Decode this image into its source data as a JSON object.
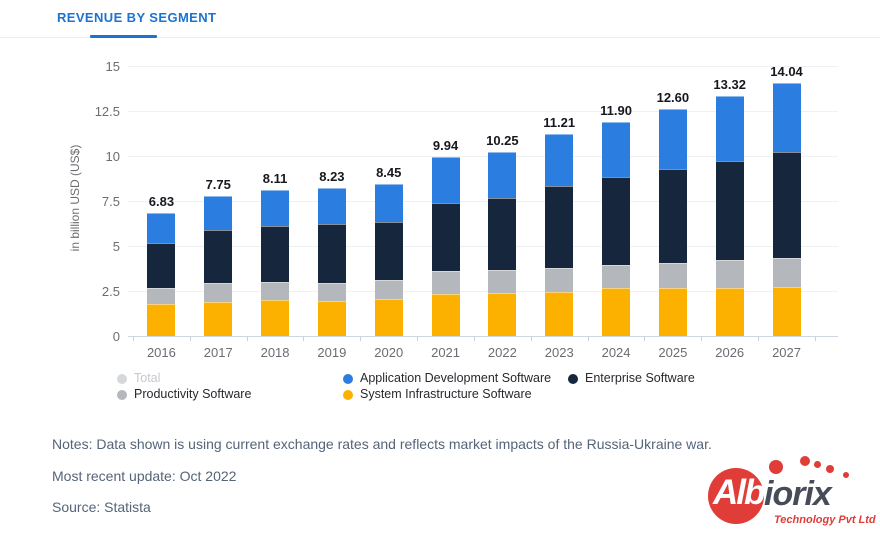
{
  "header": {
    "tab_label": "REVENUE BY SEGMENT"
  },
  "chart_data": {
    "type": "bar",
    "stacked": true,
    "title": "Revenue by segment",
    "xlabel": "",
    "ylabel": "in billion USD (US$)",
    "ylim": [
      0,
      15
    ],
    "yticks": [
      0,
      2.5,
      5,
      7.5,
      10,
      12.5,
      15
    ],
    "grid": true,
    "legend_position": "bottom",
    "categories": [
      "2016",
      "2017",
      "2018",
      "2019",
      "2020",
      "2021",
      "2022",
      "2023",
      "2024",
      "2025",
      "2026",
      "2027"
    ],
    "series": [
      {
        "name": "System Infrastructure Software",
        "color": "#fcb000",
        "values": [
          1.76,
          1.91,
          1.98,
          1.94,
          2.06,
          2.33,
          2.41,
          2.46,
          2.65,
          2.68,
          2.68,
          2.74
        ]
      },
      {
        "name": "Productivity Software",
        "color": "#b4b7bb",
        "values": [
          0.9,
          1.02,
          1.03,
          1.0,
          1.05,
          1.28,
          1.26,
          1.3,
          1.29,
          1.4,
          1.54,
          1.58
        ]
      },
      {
        "name": "Enterprise Software",
        "color": "#16263c",
        "values": [
          2.52,
          2.96,
          3.1,
          3.28,
          3.21,
          3.81,
          3.99,
          4.59,
          4.88,
          5.2,
          5.52,
          5.93
        ]
      },
      {
        "name": "Application Development Software",
        "color": "#2b7de0",
        "values": [
          1.65,
          1.86,
          2.0,
          2.01,
          2.13,
          2.52,
          2.59,
          2.86,
          3.08,
          3.32,
          3.58,
          3.79
        ]
      }
    ],
    "total_labels": [
      "6.83",
      "7.75",
      "8.11",
      "8.23",
      "8.45",
      "9.94",
      "10.25",
      "11.21",
      "11.90",
      "12.60",
      "13.32",
      "14.04"
    ],
    "legend": [
      {
        "label": "Total",
        "color": "#d5d8db",
        "disabled": true
      },
      {
        "label": "Application Development Software",
        "color": "#2b7de0",
        "disabled": false
      },
      {
        "label": "Enterprise Software",
        "color": "#16263c",
        "disabled": false
      },
      {
        "label": "Productivity Software",
        "color": "#b4b7bb",
        "disabled": false
      },
      {
        "label": "System Infrastructure Software",
        "color": "#fcb000",
        "disabled": false
      }
    ]
  },
  "footer": {
    "notes": "Notes: Data shown is using current exchange rates and reflects market impacts of the Russia-Ukraine war.",
    "updated": "Most recent update: Oct 2022",
    "source": "Source: Statista"
  },
  "logo": {
    "part1": "Alb",
    "part2": "iorix",
    "tagline": "Technology Pvt Ltd",
    "red": "#e03c38",
    "dark": "#474c59"
  }
}
